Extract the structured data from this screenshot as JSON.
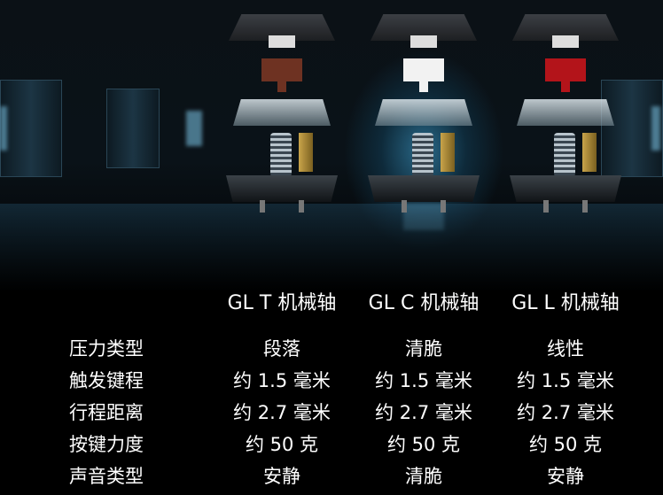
{
  "switches": [
    {
      "name": "GL T 机械轴",
      "stem_color": "#6e3222"
    },
    {
      "name": "GL C 机械轴",
      "stem_color": "#f2f2f2"
    },
    {
      "name": "GL L 机械轴",
      "stem_color": "#b3141a"
    }
  ],
  "rows": [
    {
      "label": "压力类型",
      "values": [
        "段落",
        "清脆",
        "线性"
      ]
    },
    {
      "label": "触发键程",
      "values": [
        "约 1.5 毫米",
        "约 1.5 毫米",
        "约 1.5 毫米"
      ]
    },
    {
      "label": "行程距离",
      "values": [
        "约 2.7 毫米",
        "约 2.7 毫米",
        "约 2.7 毫米"
      ]
    },
    {
      "label": "按键力度",
      "values": [
        "约 50 克",
        "约 50 克",
        "约 50 克"
      ]
    },
    {
      "label": "声音类型",
      "values": [
        "安静",
        "清脆",
        "安静"
      ]
    }
  ]
}
